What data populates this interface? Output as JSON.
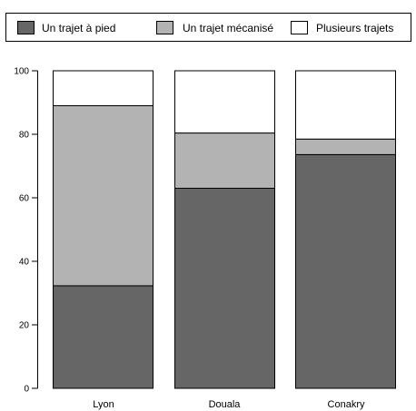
{
  "chart_data": {
    "type": "bar",
    "stacked": true,
    "categories": [
      "Lyon",
      "Douala",
      "Conakry"
    ],
    "series": [
      {
        "name": "Un trajet à pied",
        "color": "#666666",
        "values": [
          32.3,
          63.0,
          73.6
        ]
      },
      {
        "name": "Un trajet mécanisé",
        "color": "#b3b3b3",
        "values": [
          56.7,
          17.4,
          4.9
        ]
      },
      {
        "name": "Plusieurs trajets",
        "color": "#ffffff",
        "values": [
          11.0,
          19.6,
          21.5
        ]
      }
    ],
    "yticks": [
      "0",
      "20",
      "40",
      "60",
      "80",
      "100"
    ],
    "ylim": [
      0,
      100
    ],
    "title": "",
    "xlabel": "",
    "ylabel": "",
    "legend_position": "top",
    "grid": false
  }
}
